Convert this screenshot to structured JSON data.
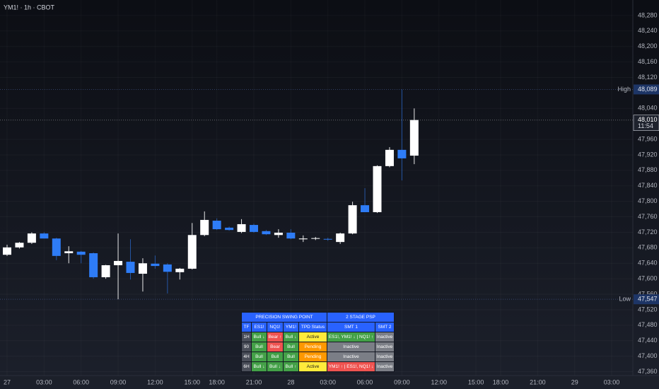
{
  "header": {
    "title": "YM1! · 1h · CBOT"
  },
  "chart_data": {
    "type": "candlestick",
    "categories": [
      "27",
      null,
      null,
      "03:00",
      null,
      null,
      "06:00",
      null,
      null,
      "09:00",
      null,
      null,
      "12:00",
      null,
      null,
      "15:00",
      null,
      "18:00",
      null,
      null,
      "21:00",
      null,
      null,
      "28",
      null,
      null,
      "03:00",
      null,
      null,
      "06:00",
      null,
      null,
      "09:00",
      null,
      null,
      "12:00",
      null,
      null,
      "15:00",
      null,
      "18:00",
      null,
      null,
      "21:00",
      null,
      null,
      "29",
      null,
      null,
      "03:00"
    ],
    "open": [
      47662,
      47681,
      47693,
      47717,
      47704,
      47666,
      47670,
      47666,
      47604,
      47635,
      47644,
      47613,
      47639,
      47637,
      47617,
      47626,
      47713,
      47750,
      47732,
      47721,
      47739,
      47723,
      47713,
      47719,
      47702,
      47704,
      47703,
      47695,
      47717,
      47790,
      47772,
      47891,
      47933,
      47918,
      null,
      null,
      null,
      null,
      null,
      null,
      null,
      null,
      null,
      null,
      null,
      null,
      null,
      null,
      null,
      null
    ],
    "high": [
      47688,
      47695,
      47720,
      47720,
      47706,
      47684,
      47672,
      47668,
      47636,
      47717,
      47702,
      47653,
      47660,
      47640,
      47628,
      47744,
      47774,
      47756,
      47735,
      47754,
      47742,
      47726,
      47728,
      47728,
      47712,
      47708,
      47706,
      47719,
      47799,
      47834,
      47893,
      47940,
      48089,
      48040,
      null,
      null,
      null,
      null,
      null,
      null,
      null,
      null,
      null,
      null,
      null,
      null,
      null,
      null,
      null,
      null
    ],
    "low": [
      47659,
      47678,
      47690,
      47704,
      47648,
      47640,
      47640,
      47600,
      47600,
      47547,
      47598,
      47567,
      47626,
      47562,
      47598,
      47624,
      47710,
      47726,
      47724,
      47718,
      47719,
      47713,
      47706,
      47702,
      47695,
      47700,
      47698,
      47690,
      47715,
      47772,
      47770,
      47888,
      47854,
      47896,
      null,
      null,
      null,
      null,
      null,
      null,
      null,
      null,
      null,
      null,
      null,
      null,
      null,
      null,
      null,
      null
    ],
    "close": [
      47681,
      47693,
      47717,
      47704,
      47659,
      47671,
      47662,
      47604,
      47635,
      47646,
      47615,
      47640,
      47633,
      47618,
      47626,
      47713,
      47752,
      47728,
      47726,
      47741,
      47721,
      47715,
      47719,
      47704,
      47704,
      47705,
      47702,
      47717,
      47790,
      47772,
      47891,
      47933,
      47911,
      48010,
      null,
      null,
      null,
      null,
      null,
      null,
      null,
      null,
      null,
      null,
      null,
      null,
      null,
      null,
      null,
      null
    ],
    "up_color": "#ffffff",
    "down_color": "#2e7cf6",
    "ylim": [
      47350,
      48320
    ],
    "yticks": [
      {
        "value": 48280,
        "label": "48,280"
      },
      {
        "value": 48240,
        "label": "48,240"
      },
      {
        "value": 48200,
        "label": "48,200"
      },
      {
        "value": 48160,
        "label": "48,160"
      },
      {
        "value": 48120,
        "label": "48,120"
      },
      {
        "value": 48040,
        "label": "48,040"
      },
      {
        "value": 47960,
        "label": "47,960"
      },
      {
        "value": 47920,
        "label": "47,920"
      },
      {
        "value": 47880,
        "label": "47,880"
      },
      {
        "value": 47840,
        "label": "47,840"
      },
      {
        "value": 47800,
        "label": "47,800"
      },
      {
        "value": 47760,
        "label": "47,760"
      },
      {
        "value": 47720,
        "label": "47,720"
      },
      {
        "value": 47680,
        "label": "47,680"
      },
      {
        "value": 47640,
        "label": "47,640"
      },
      {
        "value": 47600,
        "label": "47,600"
      },
      {
        "value": 47560,
        "label": "47,560"
      },
      {
        "value": 47520,
        "label": "47,520"
      },
      {
        "value": 47480,
        "label": "47,480"
      },
      {
        "value": 47440,
        "label": "47,440"
      },
      {
        "value": 47400,
        "label": "47,400"
      },
      {
        "value": 47360,
        "label": "47,360"
      }
    ],
    "grid": true,
    "markers": {
      "names": [
        "High",
        "Low"
      ],
      "values": [
        48089,
        47547
      ],
      "value_labels": [
        "48,089",
        "47,547"
      ],
      "color": "#1d3566"
    },
    "last": {
      "value": 48010,
      "value_label": "48,010",
      "countdown": "11:54"
    }
  },
  "table": {
    "groups": [
      {
        "text": "PRECISION SWING POINT",
        "span": 5,
        "bg": "#2962ff"
      },
      {
        "text": "2 STAGE PSP",
        "span": 2,
        "bg": "#2962ff"
      }
    ],
    "columns": [
      {
        "text": "TF",
        "bg": "#2962ff"
      },
      {
        "text": "ES1!",
        "bg": "#2962ff"
      },
      {
        "text": "NQ1!",
        "bg": "#2962ff"
      },
      {
        "text": "YM1!",
        "bg": "#2962ff"
      },
      {
        "text": "TPD Status",
        "bg": "#2962ff"
      },
      {
        "text": "SMT 1",
        "bg": "#2962ff"
      },
      {
        "text": "SMT 2",
        "bg": "#2962ff"
      }
    ],
    "rows": [
      [
        {
          "text": "1H",
          "bg": "#4a4e59"
        },
        {
          "text": "Bull ↓",
          "bg": "#43a047"
        },
        {
          "text": "Bear ↑",
          "bg": "#ef5350"
        },
        {
          "text": "Bull ↓",
          "bg": "#43a047"
        },
        {
          "text": "Active",
          "bg": "#ffeb3b"
        },
        {
          "text": "ES1!, YM1! ↓ | NQ1! ↑",
          "bg": "#43a047"
        },
        {
          "text": "Inactive",
          "bg": "#7b7e86"
        }
      ],
      [
        {
          "text": "90",
          "bg": "#4a4e59"
        },
        {
          "text": "Bull",
          "bg": "#43a047"
        },
        {
          "text": "Bear",
          "bg": "#ef5350"
        },
        {
          "text": "Bull",
          "bg": "#43a047"
        },
        {
          "text": "Pending",
          "bg": "#ff9800"
        },
        {
          "text": "Inactive",
          "bg": "#7b7e86"
        },
        {
          "text": "Inactive",
          "bg": "#7b7e86"
        }
      ],
      [
        {
          "text": "4H",
          "bg": "#4a4e59"
        },
        {
          "text": "Bull",
          "bg": "#43a047"
        },
        {
          "text": "Bull",
          "bg": "#43a047"
        },
        {
          "text": "Bull",
          "bg": "#43a047"
        },
        {
          "text": "Pending",
          "bg": "#ff9800"
        },
        {
          "text": "Inactive",
          "bg": "#7b7e86"
        },
        {
          "text": "Inactive",
          "bg": "#7b7e86"
        }
      ],
      [
        {
          "text": "6H",
          "bg": "#4a4e59"
        },
        {
          "text": "Bull ↓",
          "bg": "#43a047"
        },
        {
          "text": "Bull ↓",
          "bg": "#43a047"
        },
        {
          "text": "Bull ↑",
          "bg": "#43a047"
        },
        {
          "text": "Active",
          "bg": "#ffeb3b"
        },
        {
          "text": "YM1! ↑ | ES1!, NQ1! ↓",
          "bg": "#ef5350"
        },
        {
          "text": "Inactive",
          "bg": "#7b7e86"
        }
      ]
    ]
  }
}
